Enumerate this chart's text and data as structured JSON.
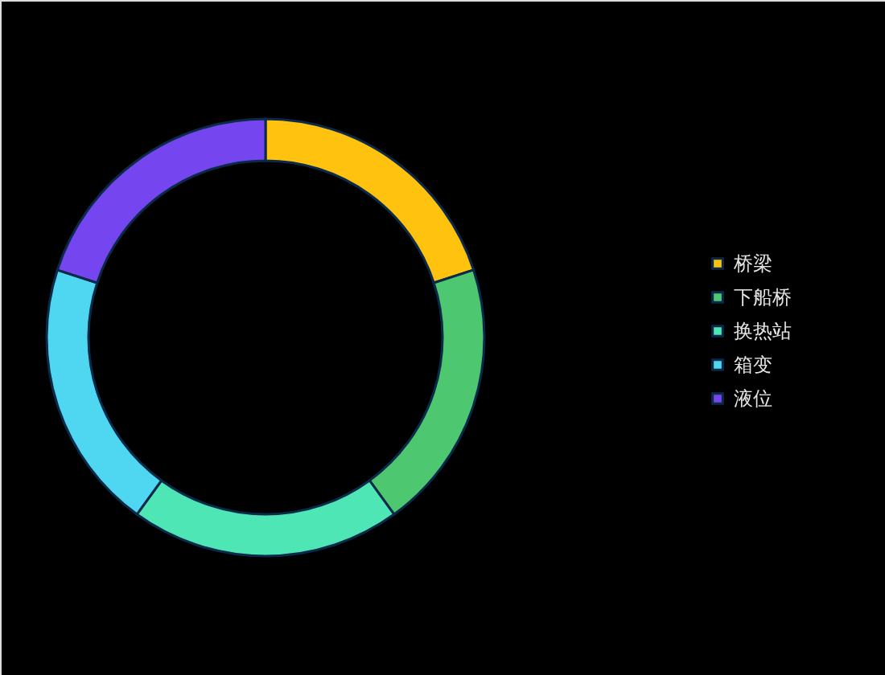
{
  "chart_data": {
    "type": "donut",
    "categories": [
      "桥梁",
      "下船桥",
      "换热站",
      "箱变",
      "液位"
    ],
    "values": [
      20,
      20,
      20,
      20,
      20
    ],
    "colors": [
      "#ffc20e",
      "#4ec870",
      "#4ee6b4",
      "#4fd6f0",
      "#7546f0"
    ],
    "legend": "right"
  }
}
